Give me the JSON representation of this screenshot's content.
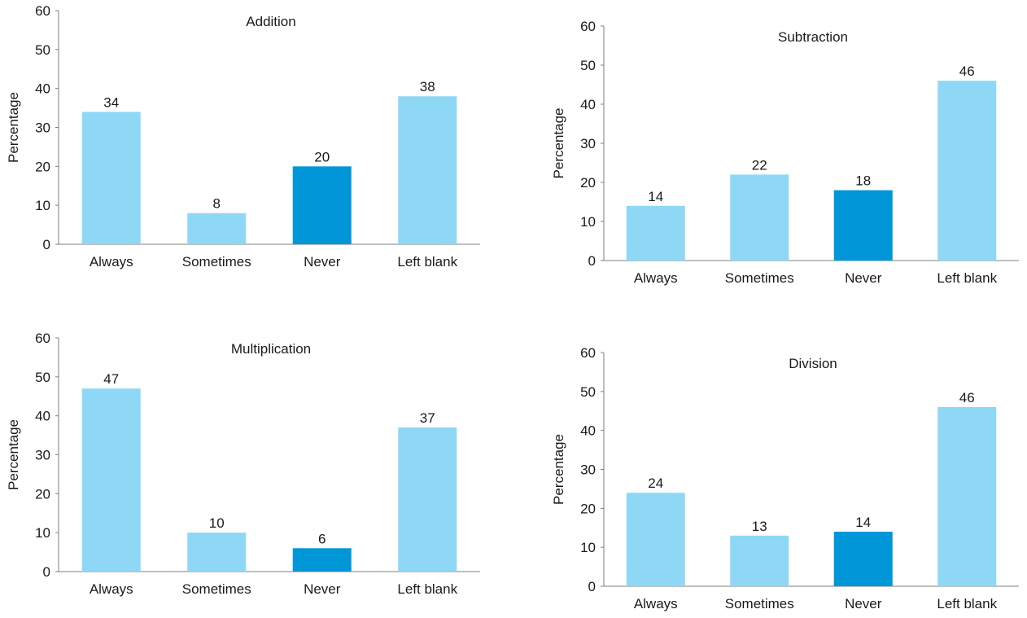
{
  "colors": {
    "bar_light": "#8ed8f6",
    "bar_dark": "#0196d8",
    "axis": "#7f7f7f",
    "text": "#1a1a1a"
  },
  "chart_data": [
    {
      "type": "bar",
      "title": "Addition",
      "ylabel": "Percentage",
      "ylim": [
        0,
        60
      ],
      "yticks": [
        0,
        10,
        20,
        30,
        40,
        50,
        60
      ],
      "categories": [
        "Always",
        "Sometimes",
        "Never",
        "Left blank"
      ],
      "values": [
        34,
        8,
        20,
        38
      ],
      "highlight_index": 2
    },
    {
      "type": "bar",
      "title": "Subtraction",
      "ylabel": "Percentage",
      "ylim": [
        0,
        60
      ],
      "yticks": [
        0,
        10,
        20,
        30,
        40,
        50,
        60
      ],
      "categories": [
        "Always",
        "Sometimes",
        "Never",
        "Left blank"
      ],
      "values": [
        14,
        22,
        18,
        46
      ],
      "highlight_index": 2
    },
    {
      "type": "bar",
      "title": "Multiplication",
      "ylabel": "Percentage",
      "ylim": [
        0,
        60
      ],
      "yticks": [
        0,
        10,
        20,
        30,
        40,
        50,
        60
      ],
      "categories": [
        "Always",
        "Sometimes",
        "Never",
        "Left blank"
      ],
      "values": [
        47,
        10,
        6,
        37
      ],
      "highlight_index": 2
    },
    {
      "type": "bar",
      "title": "Division",
      "ylabel": "Percentage",
      "ylim": [
        0,
        60
      ],
      "yticks": [
        0,
        10,
        20,
        30,
        40,
        50,
        60
      ],
      "categories": [
        "Always",
        "Sometimes",
        "Never",
        "Left blank"
      ],
      "values": [
        24,
        13,
        14,
        46
      ],
      "highlight_index": 2
    }
  ]
}
